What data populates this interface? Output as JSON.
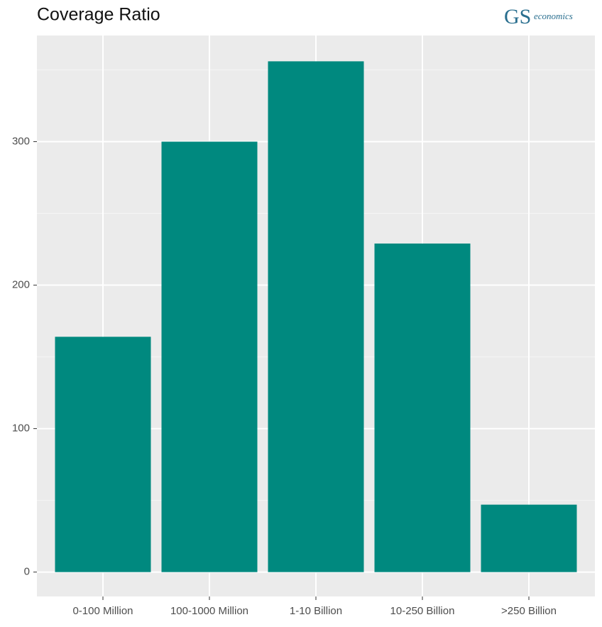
{
  "chart_data": {
    "type": "bar",
    "title": "Coverage Ratio",
    "logo": {
      "mark": "GS",
      "text": "economics"
    },
    "categories": [
      "0-100 Million",
      "100-1000 Million",
      "1-10 Billion",
      "10-250 Billion",
      ">250 Billion"
    ],
    "values": [
      164,
      300,
      356,
      229,
      47
    ],
    "color": "#00897f",
    "ylim": [
      -17,
      374
    ],
    "yticks": [
      0,
      100,
      200,
      300
    ],
    "grid": true
  }
}
